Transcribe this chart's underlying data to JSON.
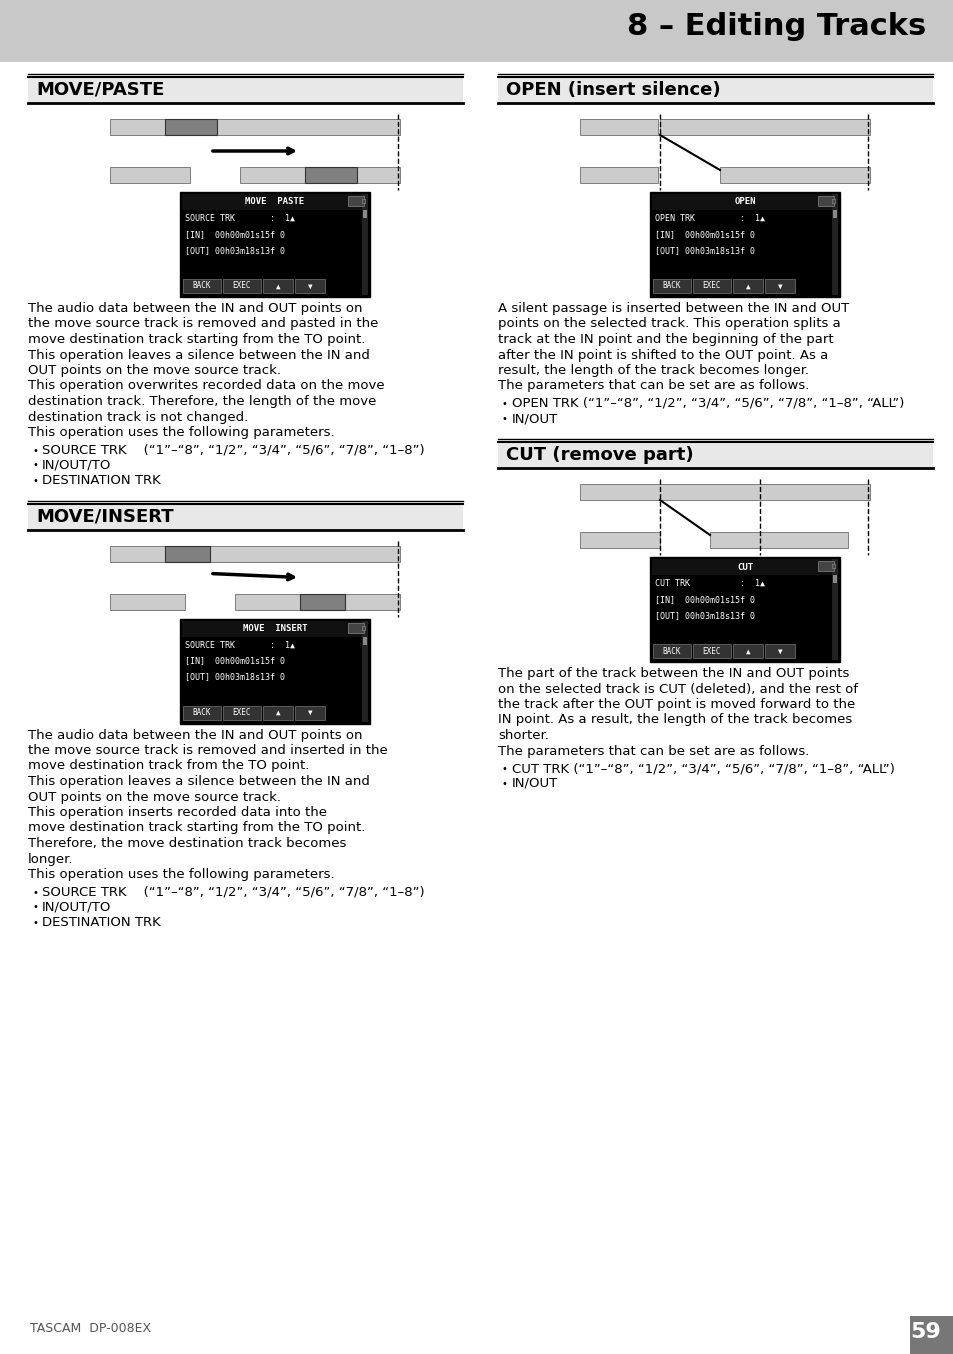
{
  "title": "8 – Editing Tracks",
  "bg_color": "#ffffff",
  "header_bg": "#c8c8c8",
  "track_light": "#cccccc",
  "track_dark": "#808080",
  "move_paste_text": [
    "The audio data between the IN and OUT points on",
    "the move source track is removed and pasted in the",
    "move destination track starting from the TO point.",
    "This operation leaves a silence between the IN and",
    "OUT points on the move source track.",
    "This operation overwrites recorded data on the move",
    "destination track. Therefore, the length of the move",
    "destination track is not changed.",
    "This operation uses the following parameters."
  ],
  "move_paste_bullets": [
    "SOURCE TRK    (“1”–“8”, “1/2”, “3/4”, “5/6”, “7/8”, “1–8”)",
    "IN/OUT/TO",
    "DESTINATION TRK"
  ],
  "move_insert_text": [
    "The audio data between the IN and OUT points on",
    "the move source track is removed and inserted in the",
    "move destination track from the TO point.",
    "This operation leaves a silence between the IN and",
    "OUT points on the move source track.",
    "This operation inserts recorded data into the",
    "move destination track starting from the TO point.",
    "Therefore, the move destination track becomes",
    "longer.",
    "This operation uses the following parameters."
  ],
  "move_insert_bullets": [
    "SOURCE TRK    (“1”–“8”, “1/2”, “3/4”, “5/6”, “7/8”, “1–8”)",
    "IN/OUT/TO",
    "DESTINATION TRK"
  ],
  "open_text": [
    "A silent passage is inserted between the IN and OUT",
    "points on the selected track. This operation splits a",
    "track at the IN point and the beginning of the part",
    "after the IN point is shifted to the OUT point. As a",
    "result, the length of the track becomes longer.",
    "The parameters that can be set are as follows."
  ],
  "open_bullets": [
    "OPEN TRK (“1”–“8”, “1/2”, “3/4”, “5/6”, “7/8”, “1–8”, “ALL”)",
    "IN/OUT"
  ],
  "cut_text": [
    "The part of the track between the IN and OUT points",
    "on the selected track is CUT (deleted), and the rest of",
    "the track after the OUT point is moved forward to the",
    "IN point. As a result, the length of the track becomes",
    "shorter.",
    "The parameters that can be set are as follows."
  ],
  "cut_bullets": [
    "CUT TRK (“1”–“8”, “1/2”, “3/4”, “5/6”, “7/8”, “1–8”, “ALL”)",
    "IN/OUT"
  ],
  "footer_text": "TASCAM  DP-008EX",
  "page_number": "59"
}
